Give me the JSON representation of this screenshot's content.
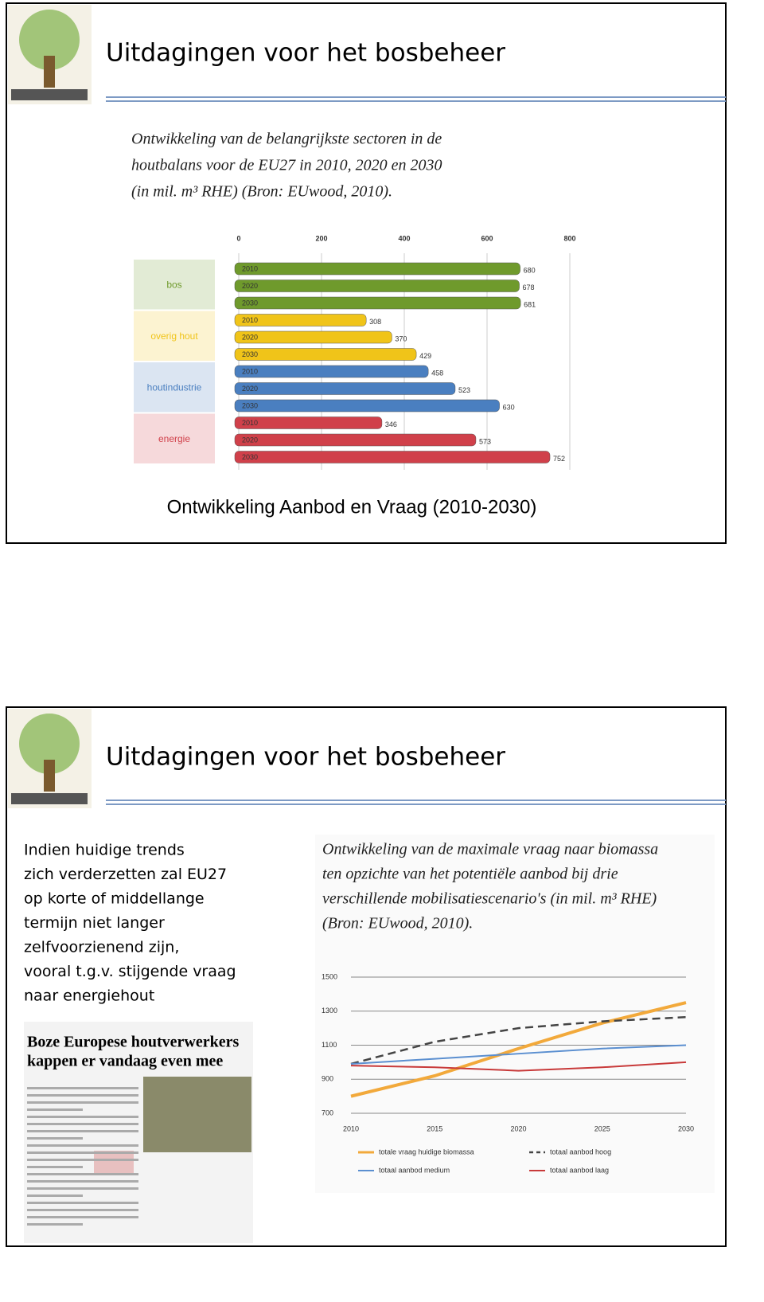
{
  "slides": [
    {
      "title": "Uitdagingen voor het bosbeheer",
      "caption": "Ontwikkeling Aanbod en Vraag (2010-2030)"
    },
    {
      "title": "Uitdagingen voor het bosbeheer",
      "body": [
        "Indien huidige trends",
        "zich verderzetten zal EU27",
        "op korte of middellange",
        "termijn niet langer",
        "zelfvoorzienend zijn,",
        "vooral t.g.v. stijgende vraag",
        "naar energiehout"
      ],
      "newspaper": {
        "headline": [
          "Boze Europese houtverwerkers",
          "kappen er vandaag even mee"
        ]
      }
    }
  ],
  "chart_data": [
    {
      "type": "hbar",
      "title": [
        "Ontwikkeling van de belangrijkste sectoren in de",
        "houtbalans voor de EU27 in 2010, 2020 en 2030",
        "(in mil. m³ RHE) (Bron: EUwood, 2010)."
      ],
      "categories": [
        "2010",
        "2020",
        "2030"
      ],
      "series": [
        {
          "name": "bos",
          "color": "#6f9a2c",
          "values": [
            680,
            678,
            681
          ]
        },
        {
          "name": "overig hout",
          "color": "#f0c419",
          "values": [
            308,
            370,
            429
          ]
        },
        {
          "name": "houtindustrie",
          "color": "#4a7fc0",
          "values": [
            458,
            523,
            630
          ]
        },
        {
          "name": "energie",
          "color": "#d0404a",
          "values": [
            346,
            573,
            752
          ]
        }
      ],
      "xlim": [
        0,
        800
      ],
      "xticks": [
        0,
        200,
        400,
        600,
        800
      ],
      "grid": true
    },
    {
      "type": "line",
      "title": [
        "Ontwikkeling van de maximale vraag naar biomassa",
        "ten opzichte van het potentiële aanbod bij drie",
        "verschillende mobilisatiescenario's (in mil. m³ RHE)",
        "(Bron: EUwood, 2010)."
      ],
      "x": [
        2010,
        2015,
        2020,
        2025,
        2030
      ],
      "series": [
        {
          "name": "totale vraag huidige biomassa",
          "color": "#f2a93b",
          "width": 4,
          "dashed": false,
          "values": [
            800,
            920,
            1080,
            1230,
            1350
          ]
        },
        {
          "name": "totaal aanbod hoog",
          "color": "#444444",
          "width": 2.5,
          "dashed": true,
          "values": [
            990,
            1120,
            1200,
            1240,
            1265
          ]
        },
        {
          "name": "totaal aanbod medium",
          "color": "#5b8fd0",
          "width": 2,
          "dashed": false,
          "values": [
            990,
            1020,
            1050,
            1080,
            1100
          ]
        },
        {
          "name": "totaal aanbod laag",
          "color": "#c83a3a",
          "width": 2,
          "dashed": false,
          "values": [
            980,
            970,
            950,
            970,
            1000
          ]
        }
      ],
      "xlim": [
        2010,
        2030
      ],
      "xticks": [
        2010,
        2015,
        2020,
        2025,
        2030
      ],
      "ylim": [
        700,
        1500
      ],
      "yticks": [
        700,
        900,
        1100,
        1300,
        1500
      ],
      "grid": true
    }
  ]
}
